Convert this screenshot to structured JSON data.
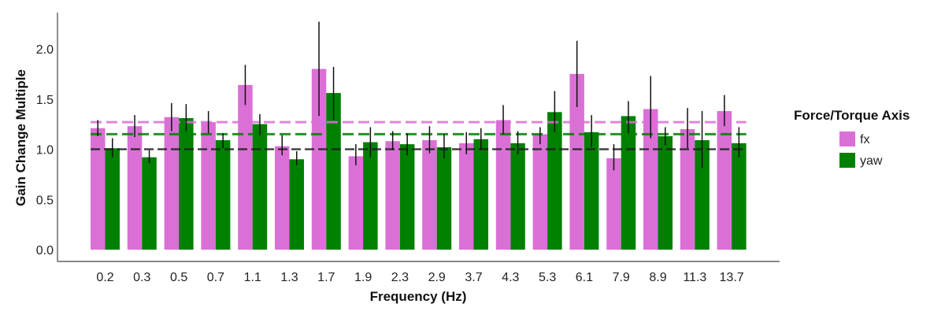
{
  "chart_data": {
    "type": "bar",
    "xlabel": "Frequency (Hz)",
    "ylabel": "Gain Change Multiple",
    "ylim": [
      0,
      2.3
    ],
    "yticks": [
      "0.0",
      "0.5",
      "1.0",
      "1.5",
      "2.0"
    ],
    "categories": [
      "0.2",
      "0.3",
      "0.5",
      "0.7",
      "1.1",
      "1.3",
      "1.7",
      "1.9",
      "2.3",
      "2.9",
      "3.7",
      "4.3",
      "5.3",
      "6.1",
      "7.9",
      "8.9",
      "11.3",
      "13.7"
    ],
    "legend": {
      "title": "Force/Torque Axis",
      "position": "right"
    },
    "series": [
      {
        "name": "fx",
        "color": "#DA70D6",
        "values": [
          1.21,
          1.23,
          1.32,
          1.27,
          1.64,
          1.03,
          1.8,
          0.93,
          1.08,
          1.09,
          1.06,
          1.29,
          1.15,
          1.75,
          0.91,
          1.4,
          1.2,
          1.38
        ],
        "err_low": [
          1.13,
          1.12,
          1.18,
          1.16,
          1.44,
          0.94,
          1.33,
          0.84,
          0.99,
          0.96,
          0.95,
          1.15,
          1.05,
          1.42,
          0.79,
          1.11,
          1.01,
          1.23
        ],
        "err_high": [
          1.29,
          1.34,
          1.46,
          1.38,
          1.84,
          1.14,
          2.27,
          1.05,
          1.18,
          1.23,
          1.17,
          1.44,
          1.22,
          2.08,
          1.05,
          1.73,
          1.41,
          1.54
        ],
        "mean_line": 1.27
      },
      {
        "name": "yaw",
        "color": "#008000",
        "values": [
          1.01,
          0.92,
          1.31,
          1.09,
          1.25,
          0.9,
          1.56,
          1.07,
          1.05,
          1.02,
          1.1,
          1.06,
          1.37,
          1.17,
          1.33,
          1.13,
          1.09,
          1.06
        ],
        "err_low": [
          0.92,
          0.86,
          1.18,
          1.01,
          1.14,
          0.84,
          1.29,
          0.92,
          0.94,
          0.91,
          1.0,
          0.95,
          1.17,
          1.02,
          1.16,
          1.04,
          0.81,
          0.92
        ],
        "err_high": [
          1.11,
          0.99,
          1.45,
          1.16,
          1.35,
          0.98,
          1.82,
          1.22,
          1.16,
          1.15,
          1.21,
          1.18,
          1.58,
          1.34,
          1.48,
          1.22,
          1.38,
          1.22
        ],
        "mean_line": 1.15
      }
    ],
    "reference_line": 1.0,
    "reference_color": "#222222"
  }
}
